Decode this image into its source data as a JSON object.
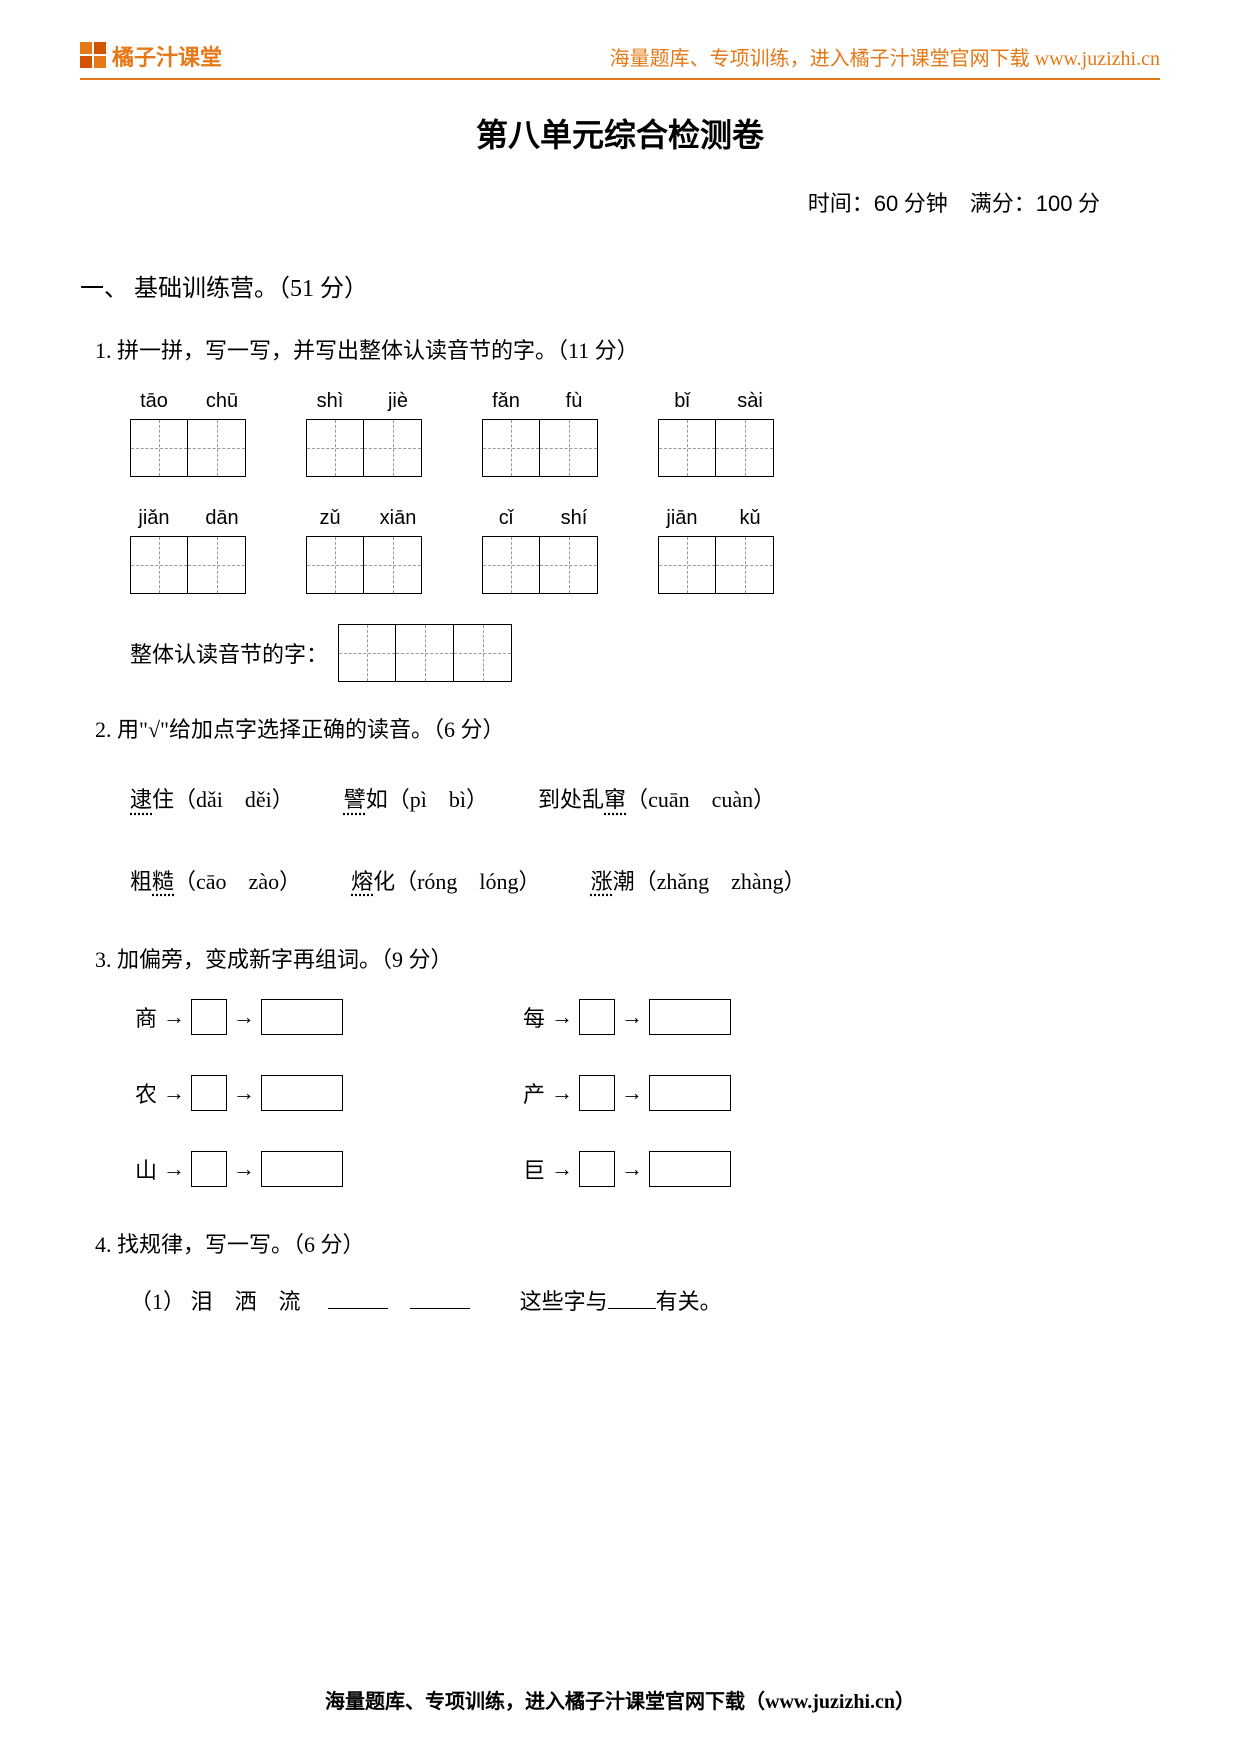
{
  "header": {
    "logo_text": "橘子汁课堂",
    "right_text": "海量题库、专项训练，进入橘子汁课堂官网下载 www.juzizhi.cn"
  },
  "colors": {
    "accent": "#e67817",
    "text": "#000000",
    "dash": "#999999"
  },
  "title": "第八单元综合检测卷",
  "meta": {
    "time_label": "时间：",
    "time_value": "60",
    "time_unit": " 分钟",
    "score_label": "　满分：",
    "score_value": "100",
    "score_unit": " 分"
  },
  "section1": {
    "label": "一、 基础训练营。（51 分）"
  },
  "q1": {
    "label": "1. 拼一拼，写一写，并写出整体认读音节的字。（11 分）",
    "rows": [
      [
        [
          "tāo",
          "chū"
        ],
        [
          "shì",
          "jiè"
        ],
        [
          "fǎn",
          "fù"
        ],
        [
          "bǐ",
          "sài"
        ]
      ],
      [
        [
          "jiǎn",
          "dān"
        ],
        [
          "zǔ",
          "xiān"
        ],
        [
          "cǐ",
          "shí"
        ],
        [
          "jiān",
          "kǔ"
        ]
      ]
    ],
    "whole_label": "整体认读音节的字：",
    "whole_box_count": 3
  },
  "q2": {
    "label": "2. 用\"√\"给加点字选择正确的读音。（6 分）",
    "items": [
      [
        {
          "pre": "",
          "u": "逮",
          "post": "住（dǎi　děi）"
        },
        {
          "pre": "",
          "u": "譬",
          "post": "如（pì　bì）"
        },
        {
          "pre": "到处乱",
          "u": "窜",
          "post": "（cuān　cuàn）"
        }
      ],
      [
        {
          "pre": "粗",
          "u": "糙",
          "post": "（cāo　zào）"
        },
        {
          "pre": "",
          "u": "熔",
          "post": "化（róng　lóng）"
        },
        {
          "pre": "",
          "u": "涨",
          "post": "潮（zhǎng　zhàng）"
        }
      ]
    ]
  },
  "q3": {
    "label": "3. 加偏旁，变成新字再组词。（9 分）",
    "rows": [
      [
        "商",
        "每"
      ],
      [
        "农",
        "产"
      ],
      [
        "山",
        "巨"
      ]
    ],
    "arrow": "→"
  },
  "q4": {
    "label": "4. 找规律，写一写。（6 分）",
    "line1": {
      "num": "（1）",
      "chars": "泪　洒　流",
      "mid": "这些字与",
      "end": "有关。"
    }
  },
  "footer": "海量题库、专项训练，进入橘子汁课堂官网下载（www.juzizhi.cn）"
}
